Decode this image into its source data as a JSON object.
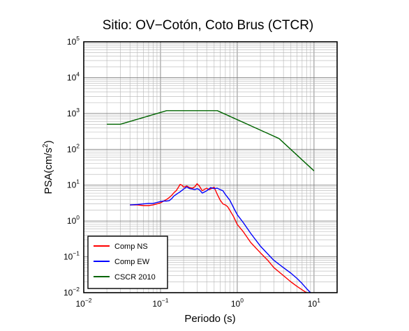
{
  "chart_data": {
    "type": "line",
    "title": "Sitio: OV−Cotón, Coto Brus (CTCR)",
    "xlabel": "Periodo (s)",
    "ylabel": {
      "prefix": "PSA(cm/s",
      "sup": "2",
      "suffix": ")"
    },
    "xscale": "log",
    "yscale": "log",
    "xlim": [
      0.01,
      20
    ],
    "ylim": [
      0.01,
      100000
    ],
    "grid": true,
    "legend_position": "bottom-left",
    "x_ticks": [
      {
        "value": 0.01,
        "base": "10",
        "exp": "−2"
      },
      {
        "value": 0.1,
        "base": "10",
        "exp": "−1"
      },
      {
        "value": 1,
        "base": "10",
        "exp": "0"
      },
      {
        "value": 10,
        "base": "10",
        "exp": "1"
      }
    ],
    "y_ticks": [
      {
        "value": 0.01,
        "base": "10",
        "exp": "−2"
      },
      {
        "value": 0.1,
        "base": "10",
        "exp": "−1"
      },
      {
        "value": 1,
        "base": "10",
        "exp": "0"
      },
      {
        "value": 10,
        "base": "10",
        "exp": "1"
      },
      {
        "value": 100,
        "base": "10",
        "exp": "2"
      },
      {
        "value": 1000,
        "base": "10",
        "exp": "3"
      },
      {
        "value": 10000,
        "base": "10",
        "exp": "4"
      },
      {
        "value": 100000,
        "base": "10",
        "exp": "5"
      }
    ],
    "series": [
      {
        "name": "Comp NS",
        "color": "#ff0000",
        "x": [
          0.04,
          0.05,
          0.06,
          0.07,
          0.08,
          0.09,
          0.1,
          0.11,
          0.12,
          0.13,
          0.14,
          0.15,
          0.16,
          0.17,
          0.18,
          0.19,
          0.2,
          0.22,
          0.24,
          0.26,
          0.28,
          0.3,
          0.32,
          0.35,
          0.38,
          0.4,
          0.43,
          0.46,
          0.5,
          0.55,
          0.6,
          0.65,
          0.7,
          0.75,
          0.8,
          0.9,
          1,
          1.2,
          1.5,
          2,
          2.5,
          3,
          4,
          5,
          6,
          7,
          8,
          9
        ],
        "y": [
          2.8,
          2.8,
          2.7,
          2.7,
          2.8,
          3.0,
          3.2,
          3.6,
          4.0,
          4.5,
          5.2,
          6.2,
          7.0,
          8.5,
          10.5,
          10.0,
          8.8,
          9.5,
          8.5,
          8.2,
          9.0,
          11.0,
          9.5,
          7.0,
          7.8,
          8.2,
          7.5,
          8.0,
          8.8,
          5.5,
          3.8,
          3.0,
          2.8,
          2.5,
          2.0,
          1.3,
          0.8,
          0.5,
          0.25,
          0.13,
          0.08,
          0.05,
          0.03,
          0.02,
          0.015,
          0.012,
          0.01,
          0.008
        ]
      },
      {
        "name": "Comp EW",
        "color": "#0000ff",
        "x": [
          0.04,
          0.05,
          0.06,
          0.07,
          0.08,
          0.09,
          0.1,
          0.11,
          0.12,
          0.13,
          0.14,
          0.15,
          0.16,
          0.17,
          0.18,
          0.2,
          0.22,
          0.24,
          0.26,
          0.28,
          0.3,
          0.32,
          0.35,
          0.4,
          0.45,
          0.5,
          0.55,
          0.6,
          0.65,
          0.7,
          0.8,
          0.9,
          1,
          1.2,
          1.5,
          2,
          2.5,
          3,
          4,
          5,
          6,
          7,
          8,
          9
        ],
        "y": [
          2.8,
          2.9,
          3.0,
          3.1,
          3.1,
          3.3,
          3.5,
          3.6,
          3.6,
          3.7,
          4.2,
          5.0,
          5.5,
          6.0,
          6.5,
          7.8,
          9.0,
          8.0,
          7.8,
          7.5,
          8.0,
          7.5,
          6.0,
          7.0,
          8.5,
          8.0,
          8.2,
          7.5,
          7.0,
          5.5,
          3.8,
          2.3,
          1.5,
          0.9,
          0.45,
          0.2,
          0.12,
          0.08,
          0.05,
          0.035,
          0.025,
          0.018,
          0.013,
          0.01
        ]
      },
      {
        "name": "CSCR 2010",
        "color": "#006400",
        "x": [
          0.02,
          0.03,
          0.12,
          0.55,
          3.5,
          10
        ],
        "y": [
          500,
          500,
          1200,
          1200,
          200,
          25
        ]
      }
    ]
  }
}
